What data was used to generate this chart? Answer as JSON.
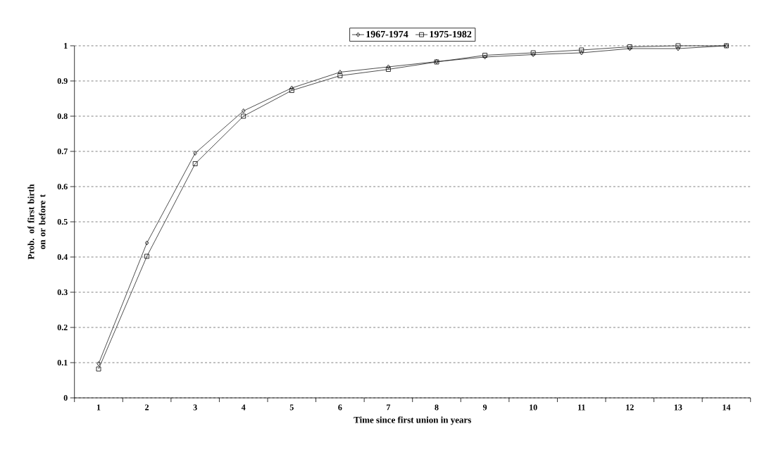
{
  "chart_data": {
    "type": "line",
    "xlabel": "Time since first union in years",
    "ylabel": "Prob. of first birth on or before t",
    "categories": [
      "1",
      "2",
      "3",
      "4",
      "5",
      "6",
      "7",
      "8",
      "9",
      "10",
      "11",
      "12",
      "13",
      "14"
    ],
    "series": [
      {
        "name": "1967-1974",
        "color": "#000000",
        "marker": "diamond",
        "values": [
          0.097,
          0.44,
          0.695,
          0.815,
          0.88,
          0.925,
          0.94,
          0.955,
          0.968,
          0.975,
          0.98,
          0.992,
          0.992,
          1.0
        ]
      },
      {
        "name": "1975-1982",
        "color": "#000000",
        "marker": "square",
        "values": [
          0.082,
          0.402,
          0.665,
          0.8,
          0.873,
          0.915,
          0.933,
          0.954,
          0.973,
          0.98,
          0.988,
          0.997,
          1.0,
          1.0
        ]
      }
    ],
    "ylim": [
      0,
      1
    ],
    "yticks": [
      0,
      0.1,
      0.2,
      0.3,
      0.4,
      0.5,
      0.6,
      0.7,
      0.8,
      0.9,
      1
    ],
    "grid": "y",
    "legend": "top",
    "line_style": "solid"
  }
}
